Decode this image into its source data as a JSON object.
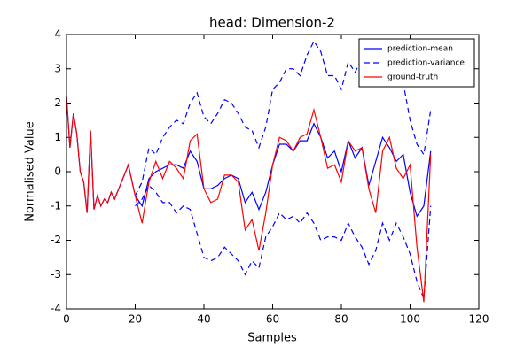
{
  "chart_data": {
    "type": "line",
    "title": "head: Dimension-2",
    "xlabel": "Samples",
    "ylabel": "Normalised Value",
    "x": [
      0,
      1,
      2,
      3,
      4,
      5,
      6,
      7,
      8,
      9,
      10,
      11,
      12,
      13,
      14,
      16,
      18,
      20,
      22,
      24,
      26,
      28,
      30,
      32,
      34,
      36,
      38,
      40,
      42,
      44,
      46,
      48,
      50,
      52,
      54,
      56,
      58,
      60,
      62,
      64,
      66,
      68,
      70,
      72,
      74,
      76,
      78,
      80,
      82,
      84,
      86,
      88,
      90,
      92,
      94,
      96,
      98,
      100,
      102,
      104,
      106
    ],
    "series": [
      {
        "name": "prediction-mean",
        "color": "#0000ff",
        "dash": false,
        "values": [
          2.2,
          0.7,
          1.7,
          1.1,
          0.0,
          -0.3,
          -1.2,
          1.2,
          -1.1,
          -0.7,
          -1.0,
          -0.8,
          -0.9,
          -0.6,
          -0.8,
          -0.3,
          0.2,
          -0.7,
          -1.0,
          -0.2,
          0.0,
          0.1,
          0.2,
          0.2,
          0.1,
          0.6,
          0.3,
          -0.5,
          -0.5,
          -0.4,
          -0.2,
          -0.1,
          -0.2,
          -0.9,
          -0.6,
          -1.1,
          -0.6,
          0.2,
          0.8,
          0.8,
          0.6,
          0.9,
          0.9,
          1.4,
          1.0,
          0.4,
          0.6,
          0.0,
          0.9,
          0.4,
          0.7,
          -0.4,
          0.3,
          1.0,
          0.7,
          0.3,
          0.5,
          -0.6,
          -1.3,
          -1.0,
          0.6
        ]
      },
      {
        "name": "prediction-variance",
        "color": "#0000ff",
        "dash": true,
        "upper": [
          null,
          null,
          null,
          null,
          null,
          null,
          null,
          null,
          null,
          null,
          null,
          null,
          null,
          null,
          null,
          null,
          null,
          -0.7,
          -0.3,
          0.7,
          0.5,
          1.0,
          1.3,
          1.5,
          1.4,
          2.0,
          2.3,
          1.6,
          1.4,
          1.7,
          2.1,
          2.0,
          1.7,
          1.3,
          1.2,
          0.7,
          1.3,
          2.4,
          2.6,
          3.0,
          3.0,
          2.8,
          3.4,
          3.8,
          3.5,
          2.8,
          2.8,
          2.4,
          3.2,
          2.9,
          3.3,
          2.6,
          2.7,
          3.3,
          3.5,
          2.7,
          2.6,
          1.5,
          0.8,
          0.5,
          1.8
        ],
        "lower": [
          null,
          null,
          null,
          null,
          null,
          null,
          null,
          null,
          null,
          null,
          null,
          null,
          null,
          null,
          null,
          null,
          null,
          -1.0,
          -0.8,
          -0.4,
          -0.6,
          -0.9,
          -0.9,
          -1.2,
          -1.0,
          -1.1,
          -1.8,
          -2.5,
          -2.6,
          -2.5,
          -2.2,
          -2.4,
          -2.6,
          -3.0,
          -2.6,
          -2.8,
          -1.9,
          -1.6,
          -1.2,
          -1.4,
          -1.3,
          -1.5,
          -1.2,
          -1.5,
          -2.0,
          -1.9,
          -1.9,
          -2.0,
          -1.5,
          -1.9,
          -2.2,
          -2.7,
          -2.3,
          -1.5,
          -2.0,
          -1.5,
          -1.9,
          -2.4,
          -3.2,
          -3.7,
          -1.0
        ]
      },
      {
        "name": "ground-truth",
        "color": "#ff0000",
        "dash": false,
        "values": [
          2.2,
          0.7,
          1.7,
          1.1,
          0.0,
          -0.3,
          -1.2,
          1.2,
          -1.1,
          -0.7,
          -1.0,
          -0.8,
          -0.9,
          -0.6,
          -0.8,
          -0.3,
          0.2,
          -0.7,
          -1.5,
          -0.3,
          0.3,
          -0.2,
          0.3,
          0.1,
          -0.2,
          0.9,
          1.1,
          -0.5,
          -0.9,
          -0.8,
          -0.1,
          -0.1,
          -0.3,
          -1.7,
          -1.4,
          -2.3,
          -1.2,
          0.2,
          1.0,
          0.9,
          0.6,
          1.0,
          1.1,
          1.8,
          1.0,
          0.1,
          0.2,
          -0.3,
          0.9,
          0.6,
          0.7,
          -0.5,
          -1.2,
          0.6,
          1.0,
          0.1,
          -0.2,
          0.2,
          -2.2,
          -3.8,
          0.5
        ]
      }
    ],
    "xlim": [
      0,
      120
    ],
    "xticks": [
      0,
      20,
      40,
      60,
      80,
      100,
      120
    ],
    "ylim": [
      -4,
      4
    ],
    "yticks": [
      -4,
      -3,
      -2,
      -1,
      0,
      1,
      2,
      3,
      4
    ],
    "legend": "upper right"
  }
}
